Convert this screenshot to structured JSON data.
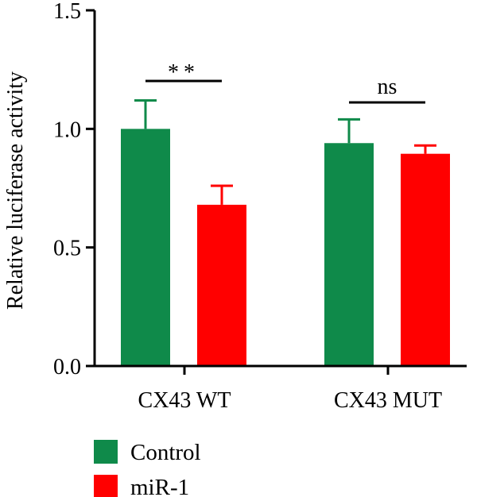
{
  "chart_data": {
    "type": "bar",
    "categories": [
      "CX43 WT",
      "CX43 MUT"
    ],
    "series": [
      {
        "name": "Control",
        "color": "#0f8a4a",
        "values": [
          1.0,
          0.94
        ],
        "errors": [
          0.12,
          0.1
        ]
      },
      {
        "name": "miR-1",
        "color": "#ff0000",
        "values": [
          0.68,
          0.895
        ],
        "errors": [
          0.08,
          0.035
        ]
      }
    ],
    "ylabel": "Relative luciferase activity",
    "xlabel": "",
    "ylim": [
      0,
      1.5
    ],
    "yticks": [
      "0.0",
      "0.5",
      "1.0",
      "1.5"
    ],
    "significance": [
      {
        "category": "CX43 WT",
        "label": "**"
      },
      {
        "category": "CX43 MUT",
        "label": "ns"
      }
    ],
    "legend_placement": "bottom-left",
    "grid": false
  }
}
